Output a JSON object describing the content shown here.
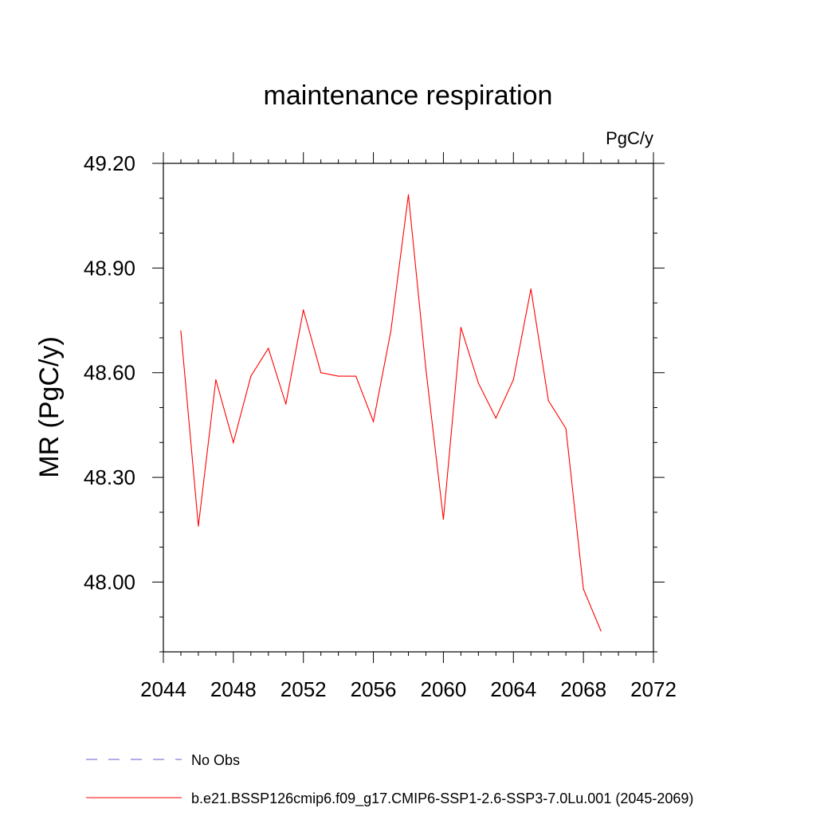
{
  "chart_data": {
    "type": "line",
    "title": "maintenance respiration",
    "units_label": "PgC/y",
    "ylabel": "MR  (PgC/y)",
    "xlabel": "",
    "xlim": [
      2044,
      2072
    ],
    "ylim": [
      47.8,
      49.2
    ],
    "x_ticks": [
      2044,
      2048,
      2052,
      2056,
      2060,
      2064,
      2068,
      2072
    ],
    "x_tick_labels": [
      "2044",
      "2048",
      "2052",
      "2056",
      "2060",
      "2064",
      "2068",
      "2072"
    ],
    "y_ticks": [
      48.0,
      48.3,
      48.6,
      48.9,
      49.2
    ],
    "y_tick_labels": [
      "48.00",
      "48.30",
      "48.60",
      "48.90",
      "49.20"
    ],
    "grid": false,
    "legend_position": "bottom",
    "series": [
      {
        "name": "b.e21.BSSP126cmip6.f09_g17.CMIP6-SSP1-2.6-SSP3-7.0Lu.001 (2045-2069)",
        "color": "#ff0000",
        "style": "solid",
        "x": [
          2045,
          2046,
          2047,
          2048,
          2049,
          2050,
          2051,
          2052,
          2053,
          2054,
          2055,
          2056,
          2057,
          2058,
          2059,
          2060,
          2061,
          2062,
          2063,
          2064,
          2065,
          2066,
          2067,
          2068,
          2069
        ],
        "y": [
          48.72,
          48.16,
          48.58,
          48.4,
          48.59,
          48.67,
          48.51,
          48.78,
          48.6,
          48.59,
          48.59,
          48.46,
          48.72,
          49.11,
          48.61,
          48.18,
          48.73,
          48.57,
          48.47,
          48.58,
          48.84,
          48.52,
          48.44,
          47.98,
          47.86
        ]
      }
    ],
    "legend_entries": [
      {
        "label": "No Obs",
        "color": "#6a5acd",
        "style": "dashed"
      },
      {
        "label": "b.e21.BSSP126cmip6.f09_g17.CMIP6-SSP1-2.6-SSP3-7.0Lu.001 (2045-2069)",
        "color": "#ff0000",
        "style": "solid"
      }
    ]
  }
}
